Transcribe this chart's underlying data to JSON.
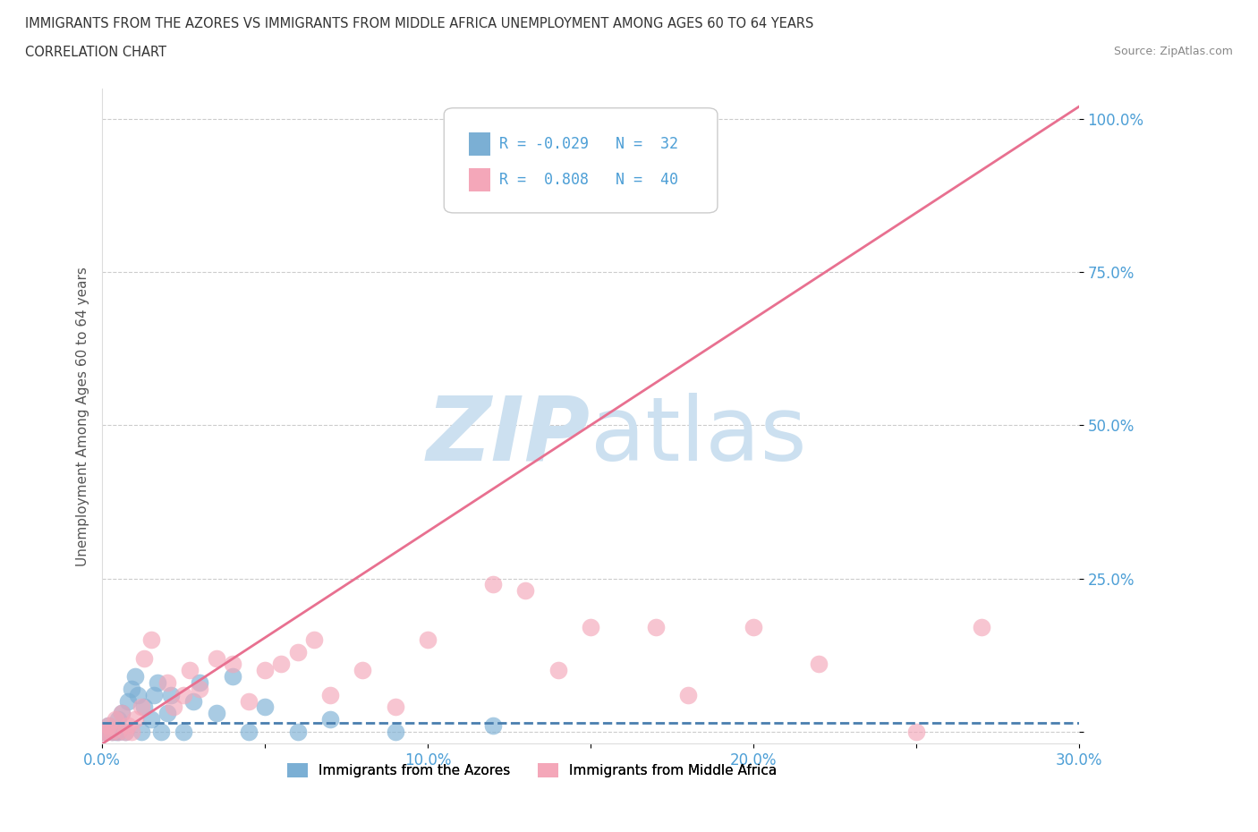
{
  "title_line1": "IMMIGRANTS FROM THE AZORES VS IMMIGRANTS FROM MIDDLE AFRICA UNEMPLOYMENT AMONG AGES 60 TO 64 YEARS",
  "title_line2": "CORRELATION CHART",
  "source_text": "Source: ZipAtlas.com",
  "xlabel": "Immigrants from the Azores",
  "ylabel": "Unemployment Among Ages 60 to 64 years",
  "xlim": [
    0.0,
    0.3
  ],
  "ylim": [
    -0.02,
    1.05
  ],
  "xticks": [
    0.0,
    0.05,
    0.1,
    0.15,
    0.2,
    0.25,
    0.3
  ],
  "xticklabels": [
    "0.0%",
    "",
    "10.0%",
    "",
    "20.0%",
    "",
    "30.0%"
  ],
  "ytick_positions": [
    0.0,
    0.25,
    0.5,
    0.75,
    1.0
  ],
  "ytick_labels": [
    "",
    "25.0%",
    "50.0%",
    "75.0%",
    "100.0%"
  ],
  "legend_r1_text": "R = -0.029   N =  32",
  "legend_r2_text": "R =  0.808   N =  40",
  "legend_label1": "Immigrants from the Azores",
  "legend_label2": "Immigrants from Middle Africa",
  "color_azores": "#7BAFD4",
  "color_africa": "#F4A7B9",
  "color_azores_line": "#4A7FAF",
  "color_africa_line": "#E87090",
  "color_tick_labels": "#4D9FD6",
  "color_title": "#333333",
  "color_source": "#888888",
  "watermark_color": "#cce0f0",
  "background_color": "#ffffff",
  "africa_trend_x0": 0.0,
  "africa_trend_y0": -0.02,
  "africa_trend_x1": 0.3,
  "africa_trend_y1": 1.02,
  "azores_trend_y": 0.015,
  "azores_x": [
    0.0,
    0.001,
    0.002,
    0.003,
    0.004,
    0.005,
    0.005,
    0.006,
    0.007,
    0.008,
    0.009,
    0.01,
    0.011,
    0.012,
    0.013,
    0.015,
    0.016,
    0.017,
    0.018,
    0.02,
    0.021,
    0.025,
    0.028,
    0.03,
    0.035,
    0.04,
    0.045,
    0.05,
    0.06,
    0.07,
    0.09,
    0.12
  ],
  "azores_y": [
    0.0,
    0.0,
    0.01,
    0.0,
    0.0,
    0.0,
    0.02,
    0.03,
    0.0,
    0.05,
    0.07,
    0.09,
    0.06,
    0.0,
    0.04,
    0.02,
    0.06,
    0.08,
    0.0,
    0.03,
    0.06,
    0.0,
    0.05,
    0.08,
    0.03,
    0.09,
    0.0,
    0.04,
    0.0,
    0.02,
    0.0,
    0.01
  ],
  "africa_x": [
    0.0,
    0.001,
    0.002,
    0.003,
    0.004,
    0.005,
    0.006,
    0.007,
    0.008,
    0.009,
    0.01,
    0.012,
    0.013,
    0.015,
    0.02,
    0.022,
    0.025,
    0.027,
    0.03,
    0.035,
    0.04,
    0.045,
    0.05,
    0.055,
    0.06,
    0.065,
    0.07,
    0.08,
    0.09,
    0.1,
    0.12,
    0.13,
    0.14,
    0.15,
    0.17,
    0.18,
    0.2,
    0.22,
    0.25,
    0.27
  ],
  "africa_y": [
    0.0,
    0.0,
    0.01,
    0.0,
    0.02,
    0.0,
    0.03,
    0.0,
    0.01,
    0.0,
    0.02,
    0.04,
    0.12,
    0.15,
    0.08,
    0.04,
    0.06,
    0.1,
    0.07,
    0.12,
    0.11,
    0.05,
    0.1,
    0.11,
    0.13,
    0.15,
    0.06,
    0.1,
    0.04,
    0.15,
    0.24,
    0.23,
    0.1,
    0.17,
    0.17,
    0.06,
    0.17,
    0.11,
    0.0,
    0.17
  ]
}
